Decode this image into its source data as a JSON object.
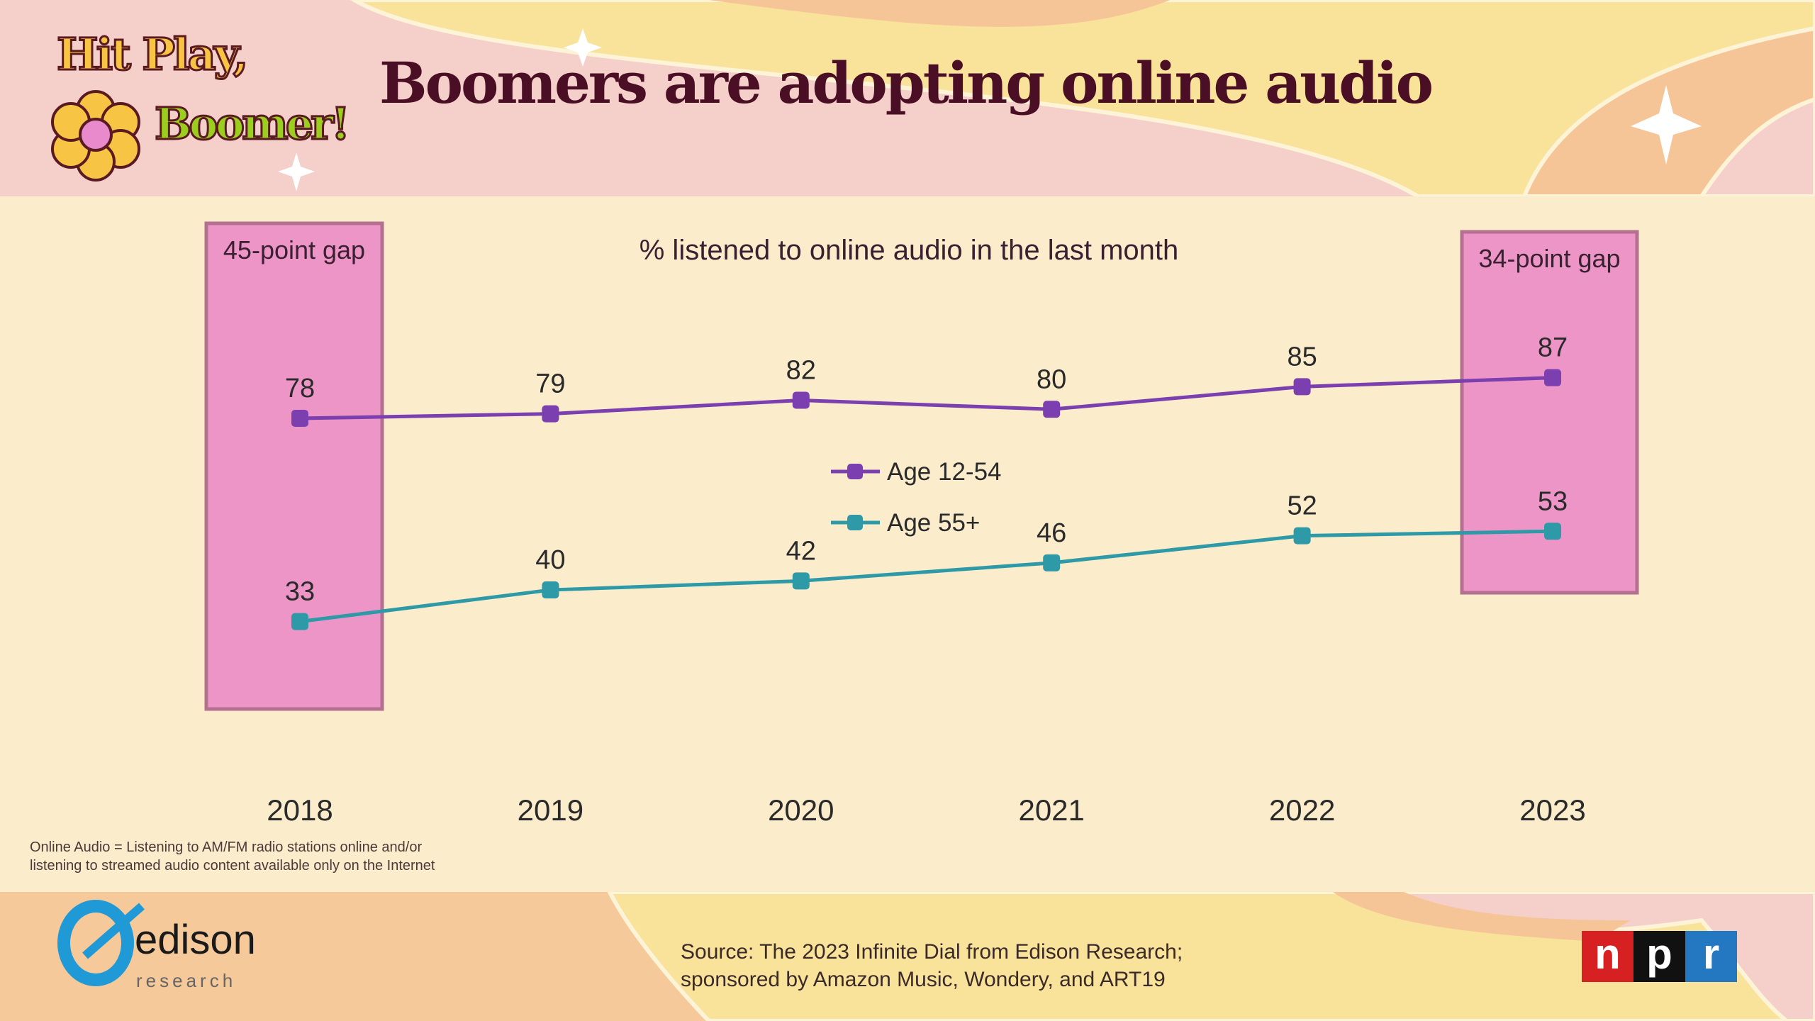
{
  "header": {
    "logo_line1": "Hit Play,",
    "logo_line2": "Boomer!",
    "title": "Boomers are adopting online audio"
  },
  "chart_data": {
    "type": "line",
    "title": "% listened to online audio in the last month",
    "categories": [
      "2018",
      "2019",
      "2020",
      "2021",
      "2022",
      "2023"
    ],
    "series": [
      {
        "name": "Age 12-54",
        "color": "#7b3fb0",
        "values": [
          78,
          79,
          82,
          80,
          85,
          87
        ]
      },
      {
        "name": "Age 55+",
        "color": "#2e9aa8",
        "values": [
          33,
          40,
          42,
          46,
          52,
          53
        ]
      }
    ],
    "annotations": [
      {
        "category": "2018",
        "label": "45-point gap"
      },
      {
        "category": "2023",
        "label": "34-point gap"
      }
    ],
    "legend": "center",
    "grid": false
  },
  "footnote": [
    "Online Audio = Listening to AM/FM radio stations online and/or",
    "listening to streamed audio content available only on the Internet"
  ],
  "footer": {
    "source_line1": "Source: The 2023 Infinite Dial from Edison Research;",
    "source_line2": "sponsored by Amazon Music, Wondery, and ART19",
    "edison_word": "edison",
    "edison_sub": "research",
    "npr": [
      "n",
      "p",
      "r"
    ]
  }
}
